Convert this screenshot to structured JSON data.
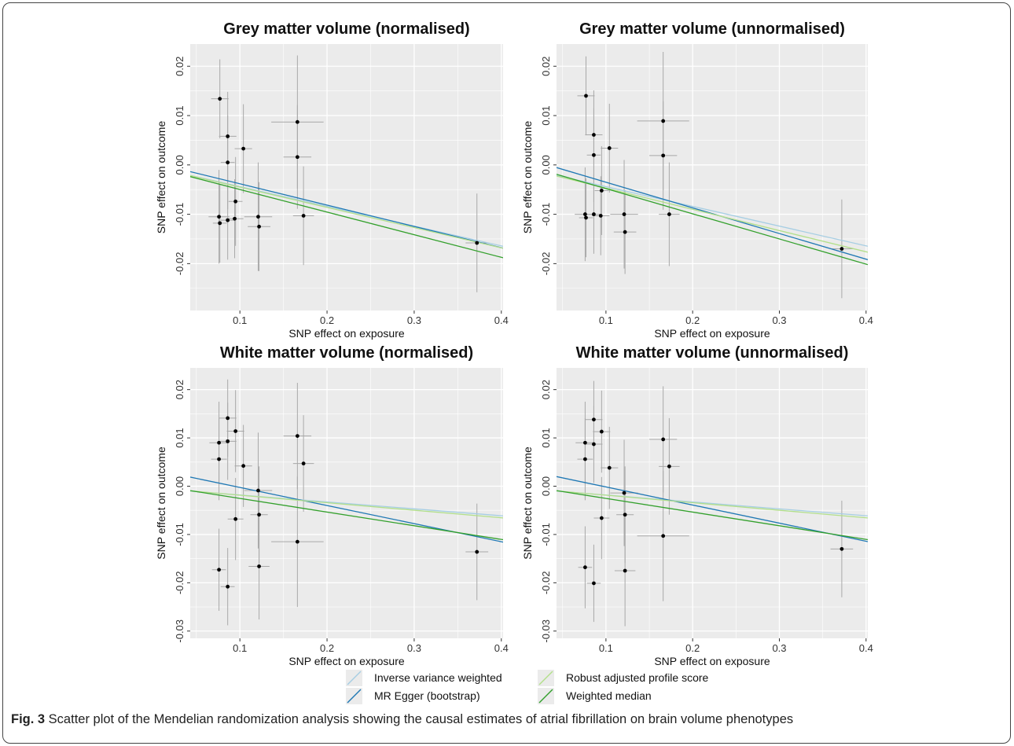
{
  "colors": {
    "panel_bg": "#ebebeb",
    "grid": "#ffffff",
    "point": "#000000",
    "errorbar": "#a8a8a8"
  },
  "legend": {
    "items": [
      {
        "label": "Inverse variance weighted",
        "color": "#a6cee3"
      },
      {
        "label": "MR Egger (bootstrap)",
        "color": "#1f78b4"
      },
      {
        "label": "Robust adjusted profile score",
        "color": "#b2df8a"
      },
      {
        "label": "Weighted median",
        "color": "#33a02c"
      }
    ]
  },
  "caption": {
    "label": "Fig. 3",
    "text": " Scatter plot of the Mendelian randomization analysis showing the causal estimates of atrial fibrillation on brain volume phenotypes"
  },
  "chart_data": [
    {
      "type": "scatter",
      "title": "Grey matter volume (normalised)",
      "xlabel": "SNP effect on exposure",
      "ylabel": "SNP effect on outcome",
      "xlim": [
        0.043,
        0.402
      ],
      "ylim": [
        -0.0295,
        0.0245
      ],
      "xticks": [
        0.1,
        0.2,
        0.3,
        0.4
      ],
      "xtick_labels": [
        "0.1",
        "0.2",
        "0.3",
        "0.4"
      ],
      "yticks": [
        -0.02,
        -0.01,
        0.0,
        0.01,
        0.02
      ],
      "ytick_labels": [
        "-0.02",
        "-0.01",
        "0.00",
        "0.01",
        "0.02"
      ],
      "points": [
        {
          "x": 0.077,
          "y": 0.0134,
          "xerr": 0.01,
          "yerr": 0.008
        },
        {
          "x": 0.086,
          "y": 0.0058,
          "xerr": 0.01,
          "yerr": 0.009
        },
        {
          "x": 0.086,
          "y": 0.0005,
          "xerr": 0.008,
          "yerr": 0.0095
        },
        {
          "x": 0.104,
          "y": 0.0033,
          "xerr": 0.01,
          "yerr": 0.009
        },
        {
          "x": 0.095,
          "y": -0.0074,
          "xerr": 0.008,
          "yerr": 0.009
        },
        {
          "x": 0.076,
          "y": -0.0105,
          "xerr": 0.012,
          "yerr": 0.0095
        },
        {
          "x": 0.077,
          "y": -0.0118,
          "xerr": 0.008,
          "yerr": 0.008
        },
        {
          "x": 0.086,
          "y": -0.0112,
          "xerr": 0.008,
          "yerr": 0.008
        },
        {
          "x": 0.094,
          "y": -0.0109,
          "xerr": 0.01,
          "yerr": 0.008
        },
        {
          "x": 0.121,
          "y": -0.0105,
          "xerr": 0.016,
          "yerr": 0.011
        },
        {
          "x": 0.122,
          "y": -0.0125,
          "xerr": 0.013,
          "yerr": 0.009
        },
        {
          "x": 0.166,
          "y": 0.0087,
          "xerr": 0.03,
          "yerr": 0.0135
        },
        {
          "x": 0.166,
          "y": 0.0016,
          "xerr": 0.016,
          "yerr": 0.0105
        },
        {
          "x": 0.173,
          "y": -0.0103,
          "xerr": 0.012,
          "yerr": 0.01
        },
        {
          "x": 0.372,
          "y": -0.0158,
          "xerr": 0.013,
          "yerr": 0.01
        }
      ],
      "lines": [
        {
          "name": "Inverse variance weighted",
          "intercept": -0.0004,
          "slope": -0.04
        },
        {
          "name": "MR Egger (bootstrap)",
          "intercept": 0.0005,
          "slope": -0.0432
        },
        {
          "name": "Robust adjusted profile score",
          "intercept": -0.0004,
          "slope": -0.041
        },
        {
          "name": "Weighted median",
          "intercept": -0.0004,
          "slope": -0.0458
        }
      ]
    },
    {
      "type": "scatter",
      "title": "Grey matter volume (unnormalised)",
      "xlabel": "SNP effect on exposure",
      "ylabel": "SNP effect on outcome",
      "xlim": [
        0.043,
        0.402
      ],
      "ylim": [
        -0.0295,
        0.0245
      ],
      "xticks": [
        0.1,
        0.2,
        0.3,
        0.4
      ],
      "xtick_labels": [
        "0.1",
        "0.2",
        "0.3",
        "0.4"
      ],
      "yticks": [
        -0.02,
        -0.01,
        0.0,
        0.01,
        0.02
      ],
      "ytick_labels": [
        "-0.02",
        "-0.01",
        "0.00",
        "0.01",
        "0.02"
      ],
      "points": [
        {
          "x": 0.077,
          "y": 0.014,
          "xerr": 0.01,
          "yerr": 0.008
        },
        {
          "x": 0.086,
          "y": 0.0061,
          "xerr": 0.01,
          "yerr": 0.009
        },
        {
          "x": 0.086,
          "y": 0.002,
          "xerr": 0.008,
          "yerr": 0.0095
        },
        {
          "x": 0.104,
          "y": 0.0034,
          "xerr": 0.01,
          "yerr": 0.009
        },
        {
          "x": 0.095,
          "y": -0.0052,
          "xerr": 0.008,
          "yerr": 0.009
        },
        {
          "x": 0.076,
          "y": -0.01,
          "xerr": 0.012,
          "yerr": 0.0095
        },
        {
          "x": 0.077,
          "y": -0.0107,
          "xerr": 0.008,
          "yerr": 0.008
        },
        {
          "x": 0.086,
          "y": -0.01,
          "xerr": 0.008,
          "yerr": 0.008
        },
        {
          "x": 0.094,
          "y": -0.0103,
          "xerr": 0.01,
          "yerr": 0.008
        },
        {
          "x": 0.121,
          "y": -0.01,
          "xerr": 0.016,
          "yerr": 0.011
        },
        {
          "x": 0.122,
          "y": -0.0136,
          "xerr": 0.013,
          "yerr": 0.0085
        },
        {
          "x": 0.166,
          "y": 0.0089,
          "xerr": 0.03,
          "yerr": 0.014
        },
        {
          "x": 0.166,
          "y": 0.0019,
          "xerr": 0.016,
          "yerr": 0.011
        },
        {
          "x": 0.173,
          "y": -0.01,
          "xerr": 0.012,
          "yerr": 0.0105
        },
        {
          "x": 0.372,
          "y": -0.017,
          "xerr": 0.013,
          "yerr": 0.01
        }
      ],
      "lines": [
        {
          "name": "Inverse variance weighted",
          "intercept": -0.0004,
          "slope": -0.04
        },
        {
          "name": "MR Egger (bootstrap)",
          "intercept": 0.0017,
          "slope": -0.052
        },
        {
          "name": "Robust adjusted profile score",
          "intercept": -0.0004,
          "slope": -0.043
        },
        {
          "name": "Weighted median",
          "intercept": 0.0003,
          "slope": -0.051
        }
      ]
    },
    {
      "type": "scatter",
      "title": "White matter volume (normalised)",
      "xlabel": "SNP effect on exposure",
      "ylabel": "SNP effect on outcome",
      "xlim": [
        0.043,
        0.402
      ],
      "ylim": [
        -0.0315,
        0.0245
      ],
      "xticks": [
        0.1,
        0.2,
        0.3,
        0.4
      ],
      "xtick_labels": [
        "0.1",
        "0.2",
        "0.3",
        "0.4"
      ],
      "yticks": [
        -0.03,
        -0.02,
        -0.01,
        0.0,
        0.01,
        0.02
      ],
      "ytick_labels": [
        "-0.03",
        "-0.02",
        "-0.01",
        "0.00",
        "0.01",
        "0.02"
      ],
      "points": [
        {
          "x": 0.086,
          "y": 0.0141,
          "xerr": 0.01,
          "yerr": 0.008
        },
        {
          "x": 0.095,
          "y": 0.0114,
          "xerr": 0.01,
          "yerr": 0.0085
        },
        {
          "x": 0.076,
          "y": 0.009,
          "xerr": 0.011,
          "yerr": 0.0085
        },
        {
          "x": 0.086,
          "y": 0.0093,
          "xerr": 0.01,
          "yerr": 0.008
        },
        {
          "x": 0.076,
          "y": 0.0056,
          "xerr": 0.009,
          "yerr": 0.0085
        },
        {
          "x": 0.104,
          "y": 0.0042,
          "xerr": 0.01,
          "yerr": 0.0085
        },
        {
          "x": 0.121,
          "y": -0.0009,
          "xerr": 0.016,
          "yerr": 0.012
        },
        {
          "x": 0.122,
          "y": -0.0059,
          "xerr": 0.01,
          "yerr": 0.01
        },
        {
          "x": 0.095,
          "y": -0.0068,
          "xerr": 0.009,
          "yerr": 0.0085
        },
        {
          "x": 0.166,
          "y": 0.0104,
          "xerr": 0.016,
          "yerr": 0.011
        },
        {
          "x": 0.173,
          "y": 0.0047,
          "xerr": 0.012,
          "yerr": 0.01
        },
        {
          "x": 0.166,
          "y": -0.0115,
          "xerr": 0.03,
          "yerr": 0.0135
        },
        {
          "x": 0.076,
          "y": -0.0173,
          "xerr": 0.008,
          "yerr": 0.0085
        },
        {
          "x": 0.086,
          "y": -0.0208,
          "xerr": 0.008,
          "yerr": 0.008
        },
        {
          "x": 0.122,
          "y": -0.0166,
          "xerr": 0.012,
          "yerr": 0.011
        },
        {
          "x": 0.372,
          "y": -0.0136,
          "xerr": 0.013,
          "yerr": 0.01
        }
      ],
      "lines": [
        {
          "name": "Inverse variance weighted",
          "intercept": -0.0004,
          "slope": -0.0143
        },
        {
          "name": "MR Egger (bootstrap)",
          "intercept": 0.0035,
          "slope": -0.0375
        },
        {
          "name": "Robust adjusted profile score",
          "intercept": -0.0003,
          "slope": -0.0156
        },
        {
          "name": "Weighted median",
          "intercept": 0.0003,
          "slope": -0.0283
        }
      ]
    },
    {
      "type": "scatter",
      "title": "White matter volume (unnormalised)",
      "xlabel": "SNP effect on exposure",
      "ylabel": "SNP effect on outcome",
      "xlim": [
        0.043,
        0.402
      ],
      "ylim": [
        -0.0315,
        0.0245
      ],
      "xticks": [
        0.1,
        0.2,
        0.3,
        0.4
      ],
      "xtick_labels": [
        "0.1",
        "0.2",
        "0.3",
        "0.4"
      ],
      "yticks": [
        -0.03,
        -0.02,
        -0.01,
        0.0,
        0.01,
        0.02
      ],
      "ytick_labels": [
        "-0.03",
        "-0.02",
        "-0.01",
        "0.00",
        "0.01",
        "0.02"
      ],
      "points": [
        {
          "x": 0.086,
          "y": 0.0138,
          "xerr": 0.01,
          "yerr": 0.008
        },
        {
          "x": 0.095,
          "y": 0.0113,
          "xerr": 0.01,
          "yerr": 0.0085
        },
        {
          "x": 0.076,
          "y": 0.009,
          "xerr": 0.011,
          "yerr": 0.0085
        },
        {
          "x": 0.086,
          "y": 0.0087,
          "xerr": 0.01,
          "yerr": 0.008
        },
        {
          "x": 0.076,
          "y": 0.0056,
          "xerr": 0.009,
          "yerr": 0.0085
        },
        {
          "x": 0.104,
          "y": 0.0038,
          "xerr": 0.01,
          "yerr": 0.0085
        },
        {
          "x": 0.121,
          "y": -0.0014,
          "xerr": 0.016,
          "yerr": 0.011
        },
        {
          "x": 0.122,
          "y": -0.0059,
          "xerr": 0.01,
          "yerr": 0.01
        },
        {
          "x": 0.095,
          "y": -0.0066,
          "xerr": 0.009,
          "yerr": 0.0085
        },
        {
          "x": 0.166,
          "y": 0.0097,
          "xerr": 0.016,
          "yerr": 0.011
        },
        {
          "x": 0.173,
          "y": 0.0041,
          "xerr": 0.012,
          "yerr": 0.01
        },
        {
          "x": 0.166,
          "y": -0.0103,
          "xerr": 0.03,
          "yerr": 0.0135
        },
        {
          "x": 0.076,
          "y": -0.0168,
          "xerr": 0.008,
          "yerr": 0.0085
        },
        {
          "x": 0.086,
          "y": -0.0201,
          "xerr": 0.008,
          "yerr": 0.008
        },
        {
          "x": 0.122,
          "y": -0.0175,
          "xerr": 0.012,
          "yerr": 0.0115
        },
        {
          "x": 0.372,
          "y": -0.013,
          "xerr": 0.013,
          "yerr": 0.01
        }
      ],
      "lines": [
        {
          "name": "Inverse variance weighted",
          "intercept": -0.0004,
          "slope": -0.0143
        },
        {
          "name": "MR Egger (bootstrap)",
          "intercept": 0.0036,
          "slope": -0.0375
        },
        {
          "name": "Robust adjusted profile score",
          "intercept": -0.0003,
          "slope": -0.0156
        },
        {
          "name": "Weighted median",
          "intercept": 0.0003,
          "slope": -0.0283
        }
      ]
    }
  ]
}
